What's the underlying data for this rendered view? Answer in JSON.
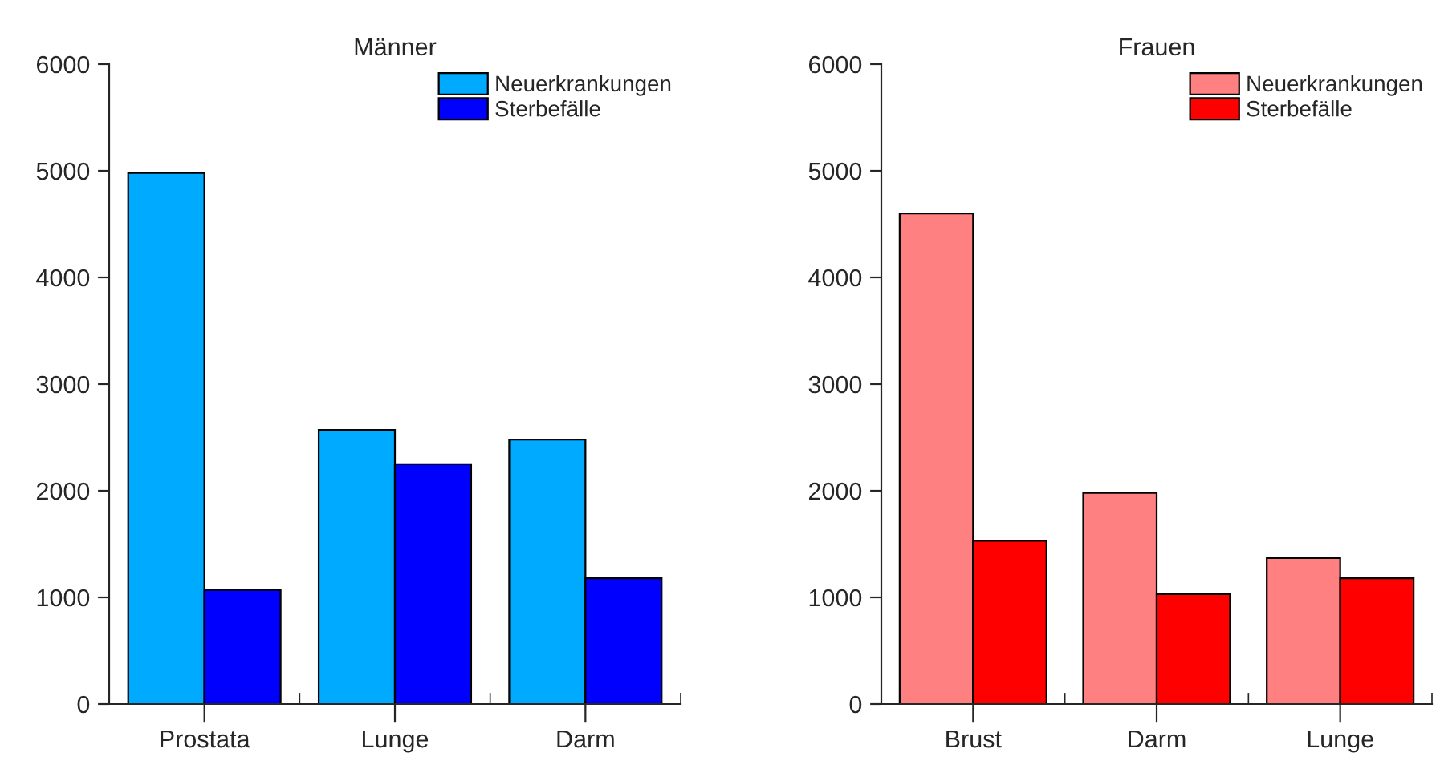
{
  "chart_data": [
    {
      "type": "bar",
      "title": "Männer",
      "categories": [
        "Prostata",
        "Lunge",
        "Darm"
      ],
      "series": [
        {
          "name": "Neuerkrankungen",
          "color": "#00aaff",
          "values": [
            4980,
            2570,
            2480
          ]
        },
        {
          "name": "Sterbefälle",
          "color": "#0000ff",
          "values": [
            1070,
            2250,
            1180
          ]
        }
      ],
      "ylim": [
        0,
        6000
      ],
      "yticks": [
        0,
        1000,
        2000,
        3000,
        4000,
        5000,
        6000
      ],
      "grid": false,
      "legend": "top right"
    },
    {
      "type": "bar",
      "title": "Frauen",
      "categories": [
        "Brust",
        "Darm",
        "Lunge"
      ],
      "series": [
        {
          "name": "Neuerkrankungen",
          "color": "#ff8080",
          "values": [
            4600,
            1980,
            1370
          ]
        },
        {
          "name": "Sterbefälle",
          "color": "#ff0000",
          "values": [
            1530,
            1030,
            1180
          ]
        }
      ],
      "ylim": [
        0,
        6000
      ],
      "yticks": [
        0,
        1000,
        2000,
        3000,
        4000,
        5000,
        6000
      ],
      "grid": false,
      "legend": "top right"
    }
  ]
}
